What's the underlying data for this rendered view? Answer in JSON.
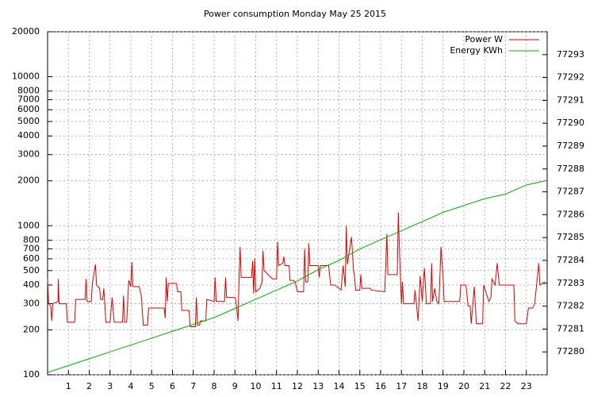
{
  "chart_data": {
    "type": "line",
    "title": "Power consumption Monday May 25 2015",
    "xlim": [
      0,
      24
    ],
    "xticks": [
      1,
      2,
      3,
      4,
      5,
      6,
      7,
      8,
      9,
      10,
      11,
      12,
      13,
      14,
      15,
      16,
      17,
      18,
      19,
      20,
      21,
      22,
      23
    ],
    "ylim": [
      100,
      20000
    ],
    "yscale": "log",
    "yticks": [
      100,
      200,
      300,
      400,
      500,
      600,
      700,
      800,
      1000,
      2000,
      3000,
      4000,
      5000,
      6000,
      7000,
      8000,
      10000,
      20000
    ],
    "y2lim": [
      77279,
      77294
    ],
    "y2ticks": [
      77280,
      77281,
      77282,
      77283,
      77284,
      77285,
      77286,
      77287,
      77288,
      77289,
      77290,
      77291,
      77292,
      77293
    ],
    "grid": true,
    "legend": "top-right",
    "series": [
      {
        "name": "Power W",
        "color": "#e00000",
        "x": [
          0.0,
          0.05,
          0.15,
          0.2,
          0.25,
          0.5,
          0.52,
          0.55,
          0.9,
          0.95,
          1.3,
          1.35,
          1.8,
          1.85,
          1.9,
          2.1,
          2.15,
          2.3,
          2.35,
          2.5,
          2.55,
          2.65,
          2.7,
          2.75,
          2.8,
          3.0,
          3.1,
          3.2,
          3.6,
          3.65,
          3.7,
          3.8,
          3.9,
          4.0,
          4.05,
          4.1,
          4.4,
          4.5,
          4.6,
          4.8,
          4.85,
          5.6,
          5.65,
          5.7,
          5.75,
          5.8,
          6.2,
          6.25,
          6.4,
          6.45,
          6.8,
          6.85,
          7.1,
          7.15,
          7.2,
          7.3,
          7.35,
          7.6,
          7.65,
          8.0,
          8.05,
          8.1,
          8.5,
          8.55,
          8.6,
          9.0,
          9.05,
          9.15,
          9.2,
          9.25,
          9.3,
          9.8,
          9.85,
          9.9,
          9.95,
          10.0,
          10.2,
          10.3,
          10.35,
          10.4,
          10.8,
          11.0,
          11.05,
          11.1,
          11.3,
          11.35,
          11.4,
          11.6,
          11.65,
          11.8,
          11.9,
          12.0,
          12.3,
          12.35,
          12.4,
          12.5,
          12.55,
          12.6,
          13.0,
          13.05,
          13.1,
          13.5,
          13.6,
          13.8,
          14.1,
          14.2,
          14.3,
          14.35,
          14.4,
          14.6,
          14.7,
          14.75,
          14.8,
          15.0,
          15.05,
          15.1,
          15.5,
          15.55,
          16.2,
          16.3,
          16.35,
          16.8,
          16.85,
          16.9,
          17.0,
          17.05,
          17.1,
          17.6,
          17.65,
          17.8,
          17.9,
          18.0,
          18.1,
          18.2,
          18.4,
          18.45,
          18.5,
          18.6,
          18.7,
          18.8,
          18.9,
          19.0,
          19.05,
          19.8,
          19.85,
          20.1,
          20.2,
          20.3,
          20.35,
          20.5,
          20.6,
          20.9,
          20.95,
          21.2,
          21.3,
          21.35,
          21.5,
          21.6,
          21.7,
          22.4,
          22.45,
          22.6,
          23.0,
          23.1,
          23.3,
          23.4,
          23.5,
          23.6,
          23.65,
          23.9
        ],
        "values": [
          440,
          300,
          290,
          230,
          300,
          310,
          440,
          300,
          300,
          225,
          225,
          320,
          320,
          440,
          310,
          310,
          410,
          550,
          400,
          380,
          320,
          320,
          380,
          300,
          225,
          225,
          330,
          225,
          225,
          340,
          225,
          225,
          430,
          390,
          570,
          390,
          390,
          340,
          215,
          215,
          280,
          280,
          240,
          450,
          310,
          410,
          410,
          360,
          360,
          270,
          270,
          210,
          210,
          330,
          215,
          215,
          230,
          230,
          320,
          310,
          450,
          310,
          310,
          450,
          330,
          330,
          310,
          230,
          450,
          720,
          450,
          450,
          580,
          350,
          600,
          360,
          380,
          420,
          680,
          500,
          440,
          440,
          780,
          540,
          560,
          620,
          540,
          540,
          430,
          430,
          420,
          360,
          360,
          700,
          420,
          420,
          760,
          540,
          540,
          450,
          540,
          540,
          400,
          400,
          370,
          540,
          390,
          1000,
          550,
          840,
          500,
          450,
          370,
          370,
          470,
          380,
          380,
          370,
          360,
          880,
          470,
          470,
          1230,
          720,
          300,
          420,
          300,
          300,
          370,
          230,
          460,
          310,
          520,
          300,
          300,
          560,
          310,
          380,
          310,
          300,
          720,
          460,
          310,
          310,
          400,
          400,
          290,
          290,
          220,
          390,
          220,
          220,
          400,
          310,
          330,
          440,
          400,
          560,
          400,
          400,
          230,
          220,
          220,
          280,
          280,
          300,
          410,
          560,
          400,
          420
        ]
      },
      {
        "name": "Energy KWh",
        "color": "#00b000",
        "axis": "y2",
        "x": [
          0,
          1,
          2,
          3,
          4,
          5,
          6,
          7,
          8,
          9,
          10,
          11,
          12,
          13,
          14,
          15,
          16,
          17,
          18,
          19,
          20,
          21,
          22,
          23,
          24
        ],
        "values": [
          77279.1,
          77279.4,
          77279.7,
          77280.0,
          77280.3,
          77280.6,
          77280.9,
          77281.2,
          77281.5,
          77281.9,
          77282.3,
          77282.7,
          77283.1,
          77283.6,
          77284.0,
          77284.5,
          77284.9,
          77285.3,
          77285.7,
          77286.1,
          77286.4,
          77286.7,
          77286.9,
          77287.3,
          77287.5
        ]
      }
    ]
  }
}
